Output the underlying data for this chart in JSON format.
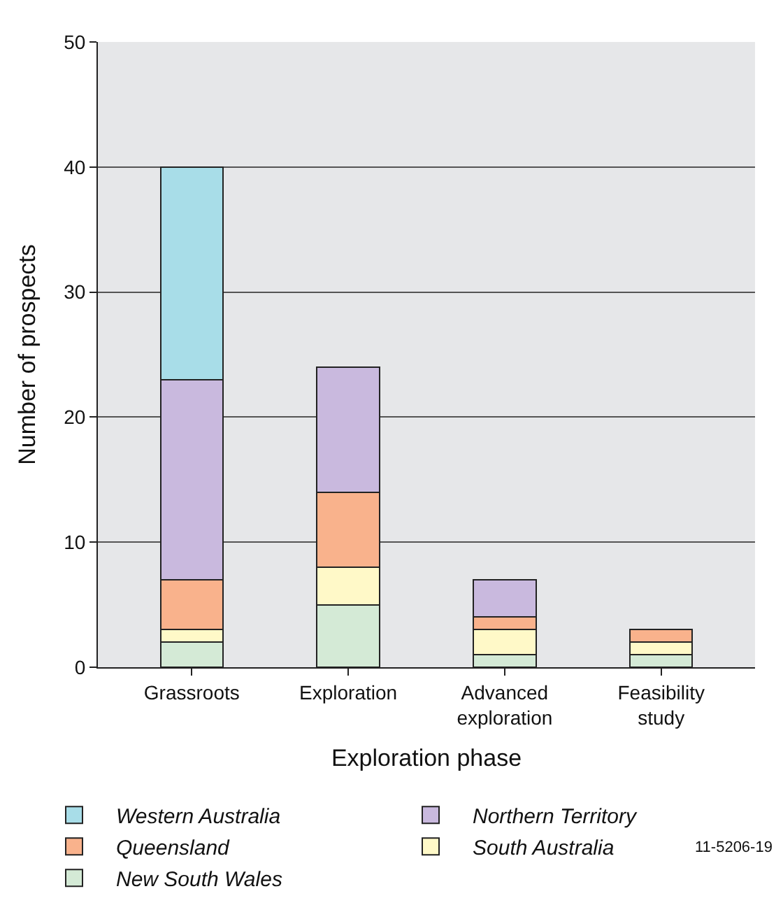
{
  "chart_data": {
    "type": "bar",
    "stacked": true,
    "xlabel": "Exploration phase",
    "ylabel": "Number of prospects",
    "categories": [
      "Grassroots",
      "Exploration",
      "Advanced exploration",
      "Feasibility study"
    ],
    "series": [
      {
        "name": "New South Wales",
        "color": "#d4ead6",
        "values": [
          2,
          5,
          1,
          1
        ]
      },
      {
        "name": "South Australia",
        "color": "#fff9c8",
        "values": [
          1,
          3,
          2,
          1
        ]
      },
      {
        "name": "Queensland",
        "color": "#f9b28c",
        "values": [
          4,
          6,
          1,
          1
        ]
      },
      {
        "name": "Northern Territory",
        "color": "#c9b9de",
        "values": [
          16,
          10,
          3,
          null
        ]
      },
      {
        "name": "Western Australia",
        "color": "#a8dde8",
        "values": [
          17,
          null,
          null,
          null
        ]
      }
    ],
    "ylim": [
      0,
      50
    ],
    "yticks": [
      0,
      10,
      20,
      30,
      40,
      50
    ],
    "grid": "y",
    "legend": "bottom",
    "annotations": [
      "11-5206-19"
    ]
  }
}
